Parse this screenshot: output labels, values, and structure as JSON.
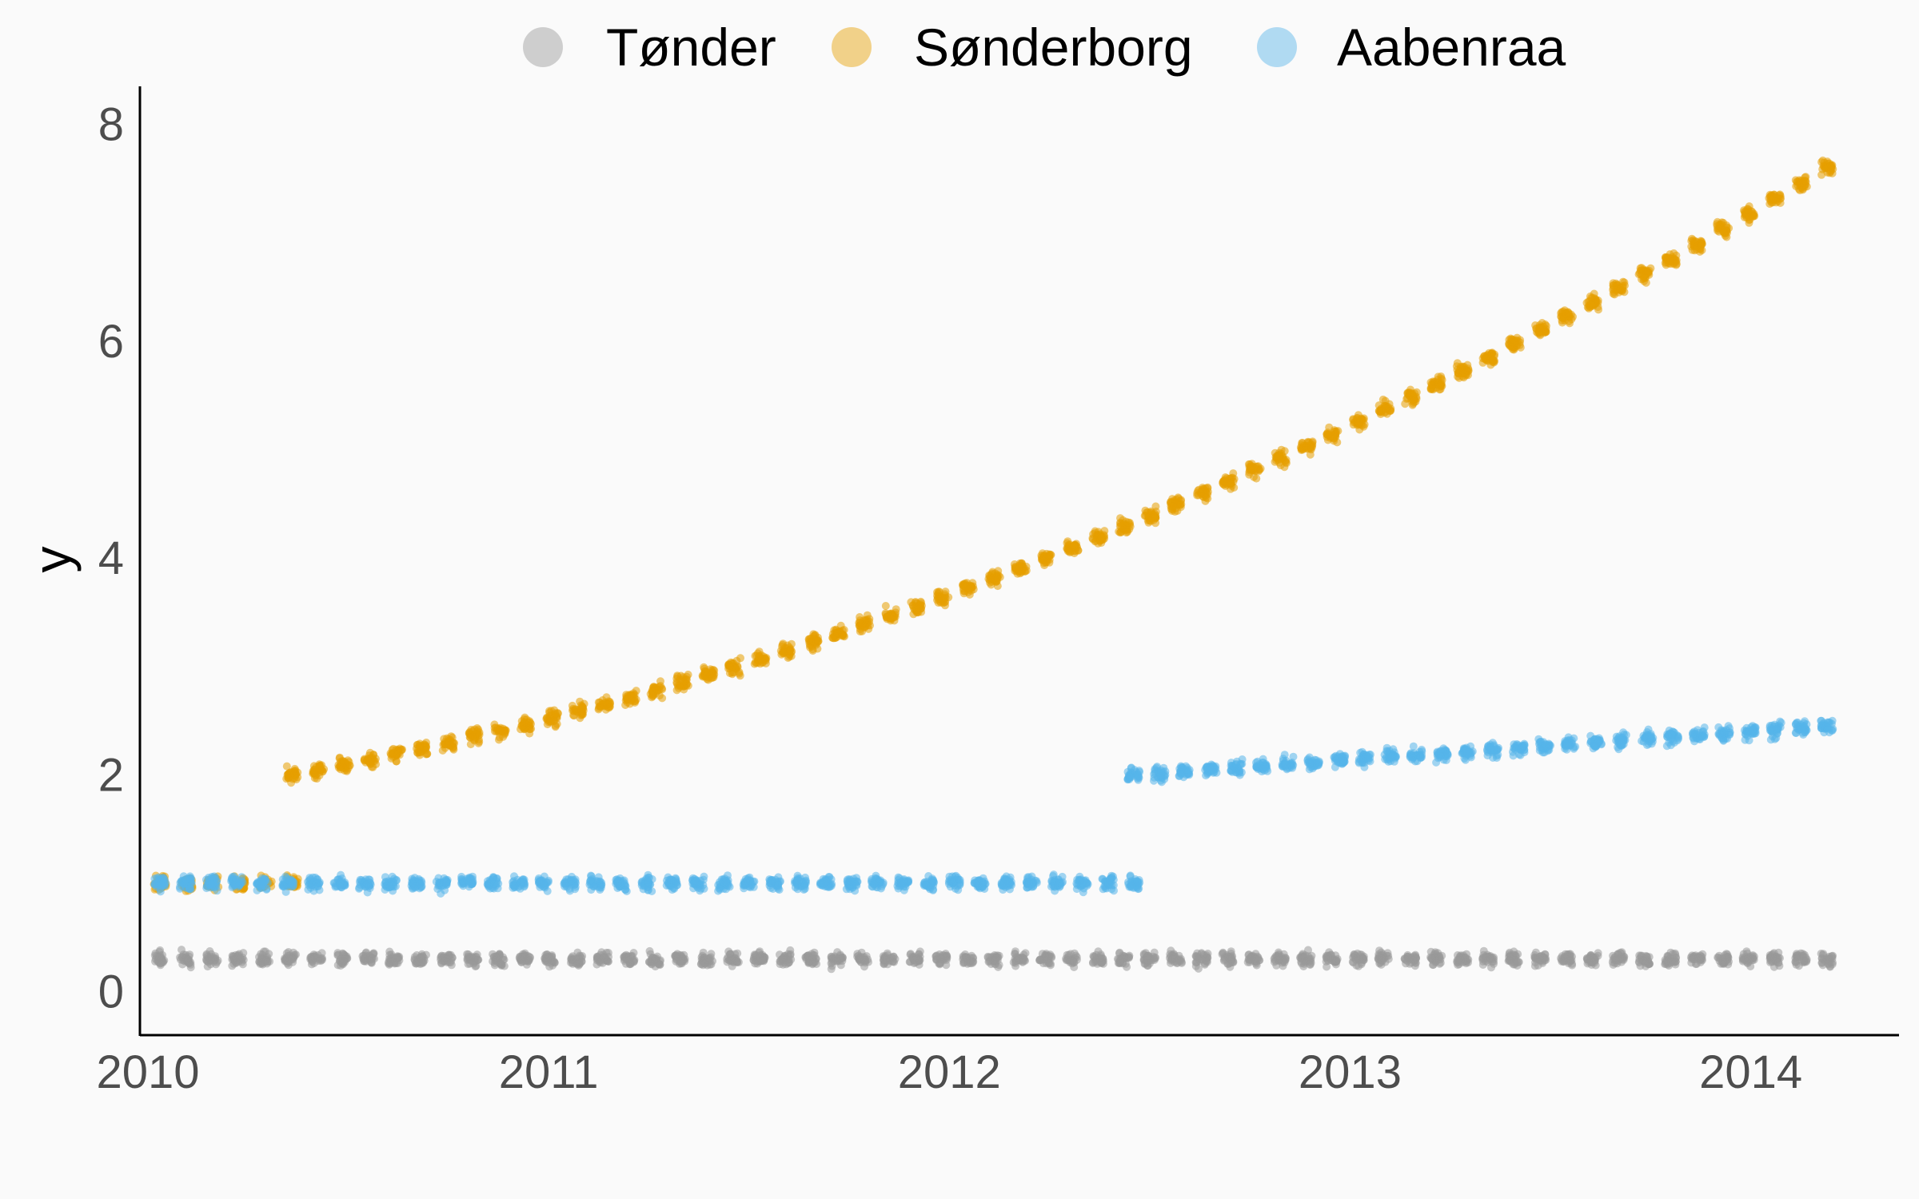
{
  "chart_data": {
    "type": "scatter",
    "title": "",
    "xlabel": "",
    "ylabel": "y",
    "xlim": [
      2009.98,
      2014.37
    ],
    "ylim": [
      -0.4,
      8.35
    ],
    "x_ticks": [
      2010,
      2011,
      2012,
      2013,
      2014
    ],
    "y_ticks": [
      0,
      2,
      4,
      6,
      8
    ],
    "grid": false,
    "legend_position": "top",
    "series": [
      {
        "name": "Tønder",
        "color": "#999999",
        "segments": [
          {
            "x_start": 2010.03,
            "x_end": 2014.19,
            "y_start": 0.3,
            "y_end": 0.3
          }
        ],
        "spread": 0.18
      },
      {
        "name": "Sønderborg",
        "color": "#E69F00",
        "segments": [
          {
            "x_start": 2010.03,
            "x_end": 2010.36,
            "y_start": 1.0,
            "y_end": 1.0
          },
          {
            "x_start": 2010.36,
            "x_end": 2014.19,
            "y_start": 2.0,
            "y_end": 7.6,
            "curve": "quadratic",
            "mid_y": 4.05
          }
        ],
        "spread": 0.2
      },
      {
        "name": "Aabenraa",
        "color": "#56B4E9",
        "segments": [
          {
            "x_start": 2010.03,
            "x_end": 2012.46,
            "y_start": 1.0,
            "y_end": 1.0
          },
          {
            "x_start": 2012.46,
            "x_end": 2014.19,
            "y_start": 2.0,
            "y_end": 2.45
          }
        ],
        "spread": 0.18
      }
    ]
  }
}
